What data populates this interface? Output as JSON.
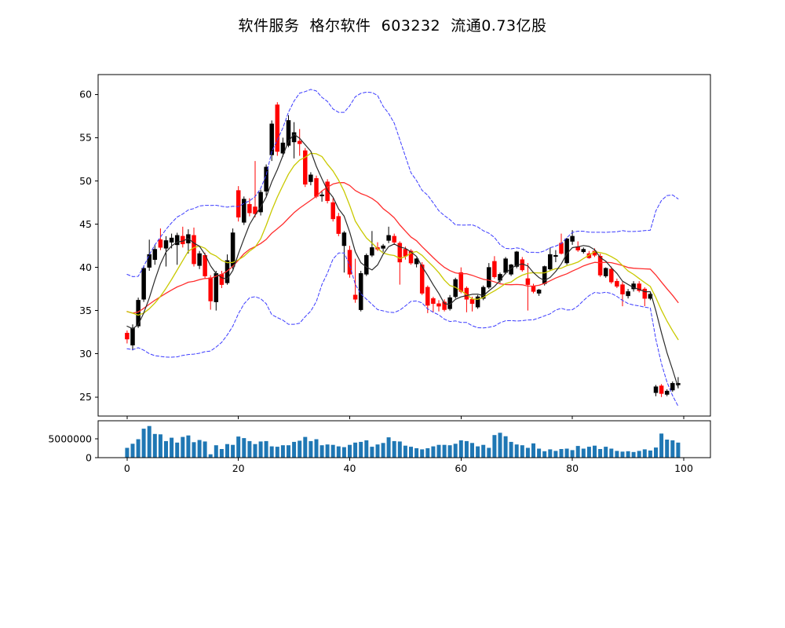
{
  "title": "软件服务  格尔软件  603232  流通0.73亿股",
  "chart_data": [
    {
      "type": "candlestick",
      "title": "软件服务  格尔软件  603232  流通0.73亿股",
      "xlabel": "",
      "ylabel": "",
      "xlim": [
        -5.2,
        104.8
      ],
      "ylim": [
        22.8,
        62.3
      ],
      "x_ticks": [
        0,
        20,
        40,
        60,
        80,
        100
      ],
      "x_tick_labels_visible": false,
      "y_ticks": [
        25,
        30,
        35,
        40,
        45,
        50,
        55,
        60
      ],
      "grid": false,
      "colors": {
        "up": "#000000",
        "down": "#ff0000"
      },
      "overlays": [
        {
          "name": "ma5",
          "type": "sma",
          "period": 5,
          "color": "#2b2b2b",
          "dash": false,
          "width": 1.2
        },
        {
          "name": "ma10",
          "type": "sma",
          "period": 10,
          "color": "#c9c900",
          "dash": false,
          "width": 1.3
        },
        {
          "name": "ma20",
          "type": "sma",
          "period": 20,
          "color": "#ff2d2d",
          "dash": false,
          "width": 1.3
        },
        {
          "name": "boll_upper",
          "type": "bollinger_upper",
          "period": 20,
          "k": 2,
          "color": "#3b3bff",
          "dash": true,
          "width": 1.0
        },
        {
          "name": "boll_lower",
          "type": "bollinger_lower",
          "period": 20,
          "k": 2,
          "color": "#3b3bff",
          "dash": true,
          "width": 1.0
        }
      ],
      "overlay_seed_history": [
        38.5,
        37.5,
        36.5,
        35.5,
        34.5,
        33.8,
        33.2,
        32.8
      ],
      "candles_ohlc": [
        [
          32.4,
          32.7,
          31.2,
          31.7
        ],
        [
          31.0,
          33.4,
          30.4,
          33.0
        ],
        [
          33.2,
          36.5,
          33.0,
          36.2
        ],
        [
          36.3,
          40.2,
          36.0,
          39.9
        ],
        [
          40.0,
          43.2,
          39.6,
          41.5
        ],
        [
          40.9,
          42.6,
          40.3,
          42.1
        ],
        [
          43.2,
          44.5,
          42.0,
          42.3
        ],
        [
          42.2,
          43.6,
          40.1,
          43.1
        ],
        [
          42.9,
          43.9,
          42.2,
          43.4
        ],
        [
          42.6,
          44.0,
          40.3,
          43.7
        ],
        [
          43.6,
          44.7,
          42.3,
          42.7
        ],
        [
          42.8,
          44.4,
          41.6,
          43.8
        ],
        [
          43.7,
          44.6,
          40.1,
          40.4
        ],
        [
          40.2,
          41.9,
          39.8,
          41.6
        ],
        [
          41.4,
          41.7,
          38.7,
          39.0
        ],
        [
          38.8,
          39.1,
          35.1,
          36.1
        ],
        [
          36.0,
          39.6,
          35.0,
          39.3
        ],
        [
          39.2,
          39.6,
          37.6,
          38.0
        ],
        [
          38.2,
          41.5,
          38.0,
          40.8
        ],
        [
          40.1,
          44.5,
          39.8,
          44.0
        ],
        [
          48.9,
          49.4,
          45.3,
          45.8
        ],
        [
          45.2,
          48.2,
          44.9,
          47.9
        ],
        [
          47.3,
          48.0,
          45.9,
          46.3
        ],
        [
          47.0,
          52.3,
          45.8,
          46.2
        ],
        [
          46.4,
          49.0,
          46.0,
          48.7
        ],
        [
          48.8,
          51.9,
          48.3,
          51.6
        ],
        [
          53.0,
          57.0,
          52.3,
          56.6
        ],
        [
          58.8,
          59.1,
          52.9,
          53.4
        ],
        [
          53.2,
          55.0,
          52.8,
          54.4
        ],
        [
          54.1,
          57.6,
          53.9,
          57.0
        ],
        [
          54.5,
          56.8,
          52.6,
          55.6
        ],
        [
          54.6,
          56.0,
          52.9,
          54.3
        ],
        [
          53.5,
          53.8,
          49.3,
          49.6
        ],
        [
          49.9,
          51.0,
          49.5,
          50.7
        ],
        [
          50.3,
          50.6,
          48.0,
          48.2
        ],
        [
          48.3,
          48.8,
          47.6,
          48.4
        ],
        [
          49.9,
          50.2,
          47.4,
          47.7
        ],
        [
          47.5,
          48.0,
          45.3,
          45.6
        ],
        [
          45.9,
          46.3,
          43.6,
          43.9
        ],
        [
          42.5,
          44.2,
          39.4,
          44.0
        ],
        [
          42.0,
          42.5,
          38.8,
          39.2
        ],
        [
          36.8,
          41.0,
          35.9,
          36.3
        ],
        [
          35.1,
          39.6,
          34.9,
          39.3
        ],
        [
          39.2,
          41.6,
          39.0,
          41.4
        ],
        [
          41.4,
          44.2,
          41.2,
          42.3
        ],
        [
          42.3,
          42.9,
          41.9,
          42.1
        ],
        [
          42.2,
          42.7,
          41.8,
          42.5
        ],
        [
          43.1,
          44.7,
          42.8,
          43.7
        ],
        [
          43.6,
          43.9,
          42.6,
          42.9
        ],
        [
          42.8,
          43.0,
          38.0,
          40.6
        ],
        [
          42.1,
          42.4,
          40.9,
          41.3
        ],
        [
          41.9,
          42.1,
          40.3,
          40.5
        ],
        [
          40.4,
          41.1,
          40.0,
          41.0
        ],
        [
          40.3,
          40.6,
          36.8,
          37.0
        ],
        [
          37.7,
          37.9,
          34.7,
          35.6
        ],
        [
          36.4,
          36.6,
          34.8,
          35.8
        ],
        [
          35.8,
          36.2,
          34.9,
          35.5
        ],
        [
          36.0,
          36.3,
          34.9,
          35.1
        ],
        [
          35.2,
          36.8,
          35.0,
          36.5
        ],
        [
          36.6,
          38.8,
          36.4,
          38.6
        ],
        [
          39.4,
          40.0,
          37.0,
          37.2
        ],
        [
          37.6,
          37.8,
          34.8,
          36.3
        ],
        [
          36.3,
          36.6,
          34.9,
          35.8
        ],
        [
          35.4,
          36.8,
          35.2,
          36.6
        ],
        [
          36.4,
          37.9,
          36.2,
          37.7
        ],
        [
          37.7,
          40.5,
          37.5,
          40.0
        ],
        [
          40.7,
          41.3,
          38.7,
          38.9
        ],
        [
          38.5,
          39.4,
          38.2,
          39.2
        ],
        [
          39.4,
          41.2,
          39.2,
          41.0
        ],
        [
          39.2,
          40.4,
          39.0,
          40.3
        ],
        [
          40.1,
          41.9,
          39.9,
          41.8
        ],
        [
          40.9,
          41.2,
          39.5,
          39.7
        ],
        [
          38.7,
          40.5,
          35.0,
          38.0
        ],
        [
          37.8,
          38.1,
          37.0,
          37.2
        ],
        [
          37.0,
          37.5,
          36.7,
          37.4
        ],
        [
          38.1,
          40.2,
          37.9,
          40.1
        ],
        [
          39.8,
          42.3,
          39.6,
          41.5
        ],
        [
          41.3,
          42.0,
          40.6,
          41.4
        ],
        [
          42.8,
          43.9,
          41.5,
          41.6
        ],
        [
          40.5,
          43.4,
          40.3,
          43.3
        ],
        [
          43.0,
          44.3,
          42.6,
          43.6
        ],
        [
          42.4,
          43.0,
          41.8,
          42.0
        ],
        [
          41.8,
          42.3,
          41.6,
          42.1
        ],
        [
          41.6,
          41.9,
          41.0,
          41.1
        ],
        [
          41.9,
          42.2,
          41.2,
          41.4
        ],
        [
          41.3,
          41.6,
          38.9,
          39.1
        ],
        [
          39.0,
          40.0,
          38.8,
          39.9
        ],
        [
          39.8,
          40.1,
          38.1,
          38.3
        ],
        [
          38.4,
          38.7,
          37.6,
          37.8
        ],
        [
          38.0,
          38.3,
          35.5,
          36.9
        ],
        [
          36.7,
          37.5,
          36.4,
          37.2
        ],
        [
          37.5,
          38.4,
          37.2,
          38.1
        ],
        [
          38.1,
          38.4,
          37.1,
          37.3
        ],
        [
          37.5,
          37.7,
          35.5,
          36.4
        ],
        [
          36.4,
          37.1,
          36.2,
          36.9
        ],
        [
          25.5,
          26.4,
          25.1,
          26.2
        ],
        [
          26.3,
          26.5,
          25.0,
          25.4
        ],
        [
          25.3,
          25.9,
          25.1,
          25.7
        ],
        [
          25.8,
          26.8,
          25.6,
          26.6
        ],
        [
          26.4,
          27.3,
          26.0,
          26.6
        ]
      ]
    },
    {
      "type": "bar",
      "title": "",
      "xlabel": "",
      "ylabel": "",
      "xlim": [
        -5.2,
        104.8
      ],
      "ylim": [
        0,
        9800000
      ],
      "x_ticks": [
        0,
        20,
        40,
        60,
        80,
        100
      ],
      "x_tick_labels": [
        "0",
        "20",
        "40",
        "60",
        "80",
        "100"
      ],
      "y_ticks": [
        0,
        5000000
      ],
      "y_tick_labels": [
        "0",
        "5000000"
      ],
      "bar_color": "#1f77b4",
      "values": [
        2600000,
        3700000,
        4900000,
        7700000,
        8400000,
        6300000,
        6200000,
        4400000,
        5300000,
        4000000,
        5500000,
        5900000,
        4100000,
        4700000,
        4300000,
        900000,
        3300000,
        2300000,
        3600000,
        3400000,
        5600000,
        5200000,
        4400000,
        3600000,
        4300000,
        4400000,
        3000000,
        2900000,
        3300000,
        3300000,
        4200000,
        4500000,
        5500000,
        4400000,
        4900000,
        3300000,
        3500000,
        3400000,
        3000000,
        2800000,
        3400000,
        4000000,
        4200000,
        4600000,
        2900000,
        3500000,
        3900000,
        5400000,
        4400000,
        4300000,
        3200000,
        2900000,
        2500000,
        2200000,
        2500000,
        3000000,
        3400000,
        3400000,
        3300000,
        3700000,
        4600000,
        4400000,
        3900000,
        3000000,
        3400000,
        2600000,
        6000000,
        6600000,
        5700000,
        4200000,
        3500000,
        3300000,
        2600000,
        3800000,
        2400000,
        1700000,
        2200000,
        1800000,
        2300000,
        2400000,
        2000000,
        3100000,
        2400000,
        2900000,
        3200000,
        2300000,
        2900000,
        2400000,
        1800000,
        1600000,
        1700000,
        1500000,
        1800000,
        2200000,
        1900000,
        2700000,
        6400000,
        4800000,
        4600000,
        4000000
      ]
    }
  ]
}
